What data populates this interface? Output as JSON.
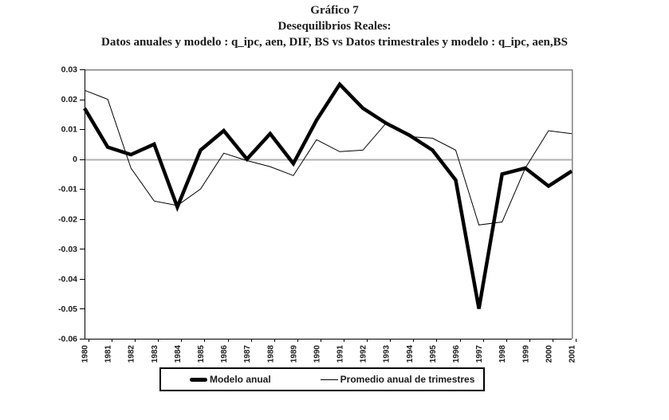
{
  "title": {
    "line1": "Gráfico 7",
    "line2": "Desequilibrios Reales:",
    "line3": "Datos anuales y modelo : q_ipc, aen, DIF, BS  vs Datos trimestrales y modelo : q_ipc, aen,BS"
  },
  "chart_data": {
    "type": "line",
    "title": "Gráfico 7 — Desequilibrios Reales",
    "categories": [
      "1980",
      "1981",
      "1982",
      "1983",
      "1984",
      "1985",
      "1986",
      "1987",
      "1988",
      "1989",
      "1990",
      "1991",
      "1992",
      "1993",
      "1994",
      "1995",
      "1996",
      "1997",
      "1998",
      "1999",
      "2000",
      "2001"
    ],
    "series": [
      {
        "name": "Modelo anual",
        "stroke_width": 4.5,
        "values": [
          0.017,
          0.004,
          0.0015,
          0.005,
          -0.016,
          0.003,
          0.0095,
          0.0,
          0.0085,
          -0.0015,
          0.013,
          0.025,
          0.017,
          0.012,
          0.008,
          0.003,
          -0.007,
          -0.05,
          -0.005,
          -0.003,
          -0.009,
          -0.004
        ]
      },
      {
        "name": "Promedio anual de trimestres",
        "stroke_width": 1,
        "values": [
          0.023,
          0.02,
          -0.003,
          -0.014,
          -0.0155,
          -0.01,
          0.002,
          -0.0005,
          -0.0025,
          -0.0055,
          0.0065,
          0.0025,
          0.003,
          0.012,
          0.0075,
          0.007,
          0.003,
          -0.022,
          -0.021,
          -0.003,
          0.0095,
          0.0085
        ]
      }
    ],
    "xlabel": "",
    "ylabel": "",
    "ylim": [
      -0.06,
      0.03
    ],
    "yticks": [
      "0.03",
      "0.02",
      "0.01",
      "0",
      "-0.01",
      "-0.02",
      "-0.03",
      "-0.04",
      "-0.05",
      "-0.06"
    ],
    "grid": "zero line only, gray top and right plot border",
    "legend_position": "bottom",
    "colors": {
      "series": "#000000",
      "axis": "#000000",
      "zero_line": "#b0b0b0",
      "plot_border": "#808080",
      "text": "#1a1a1a"
    }
  }
}
